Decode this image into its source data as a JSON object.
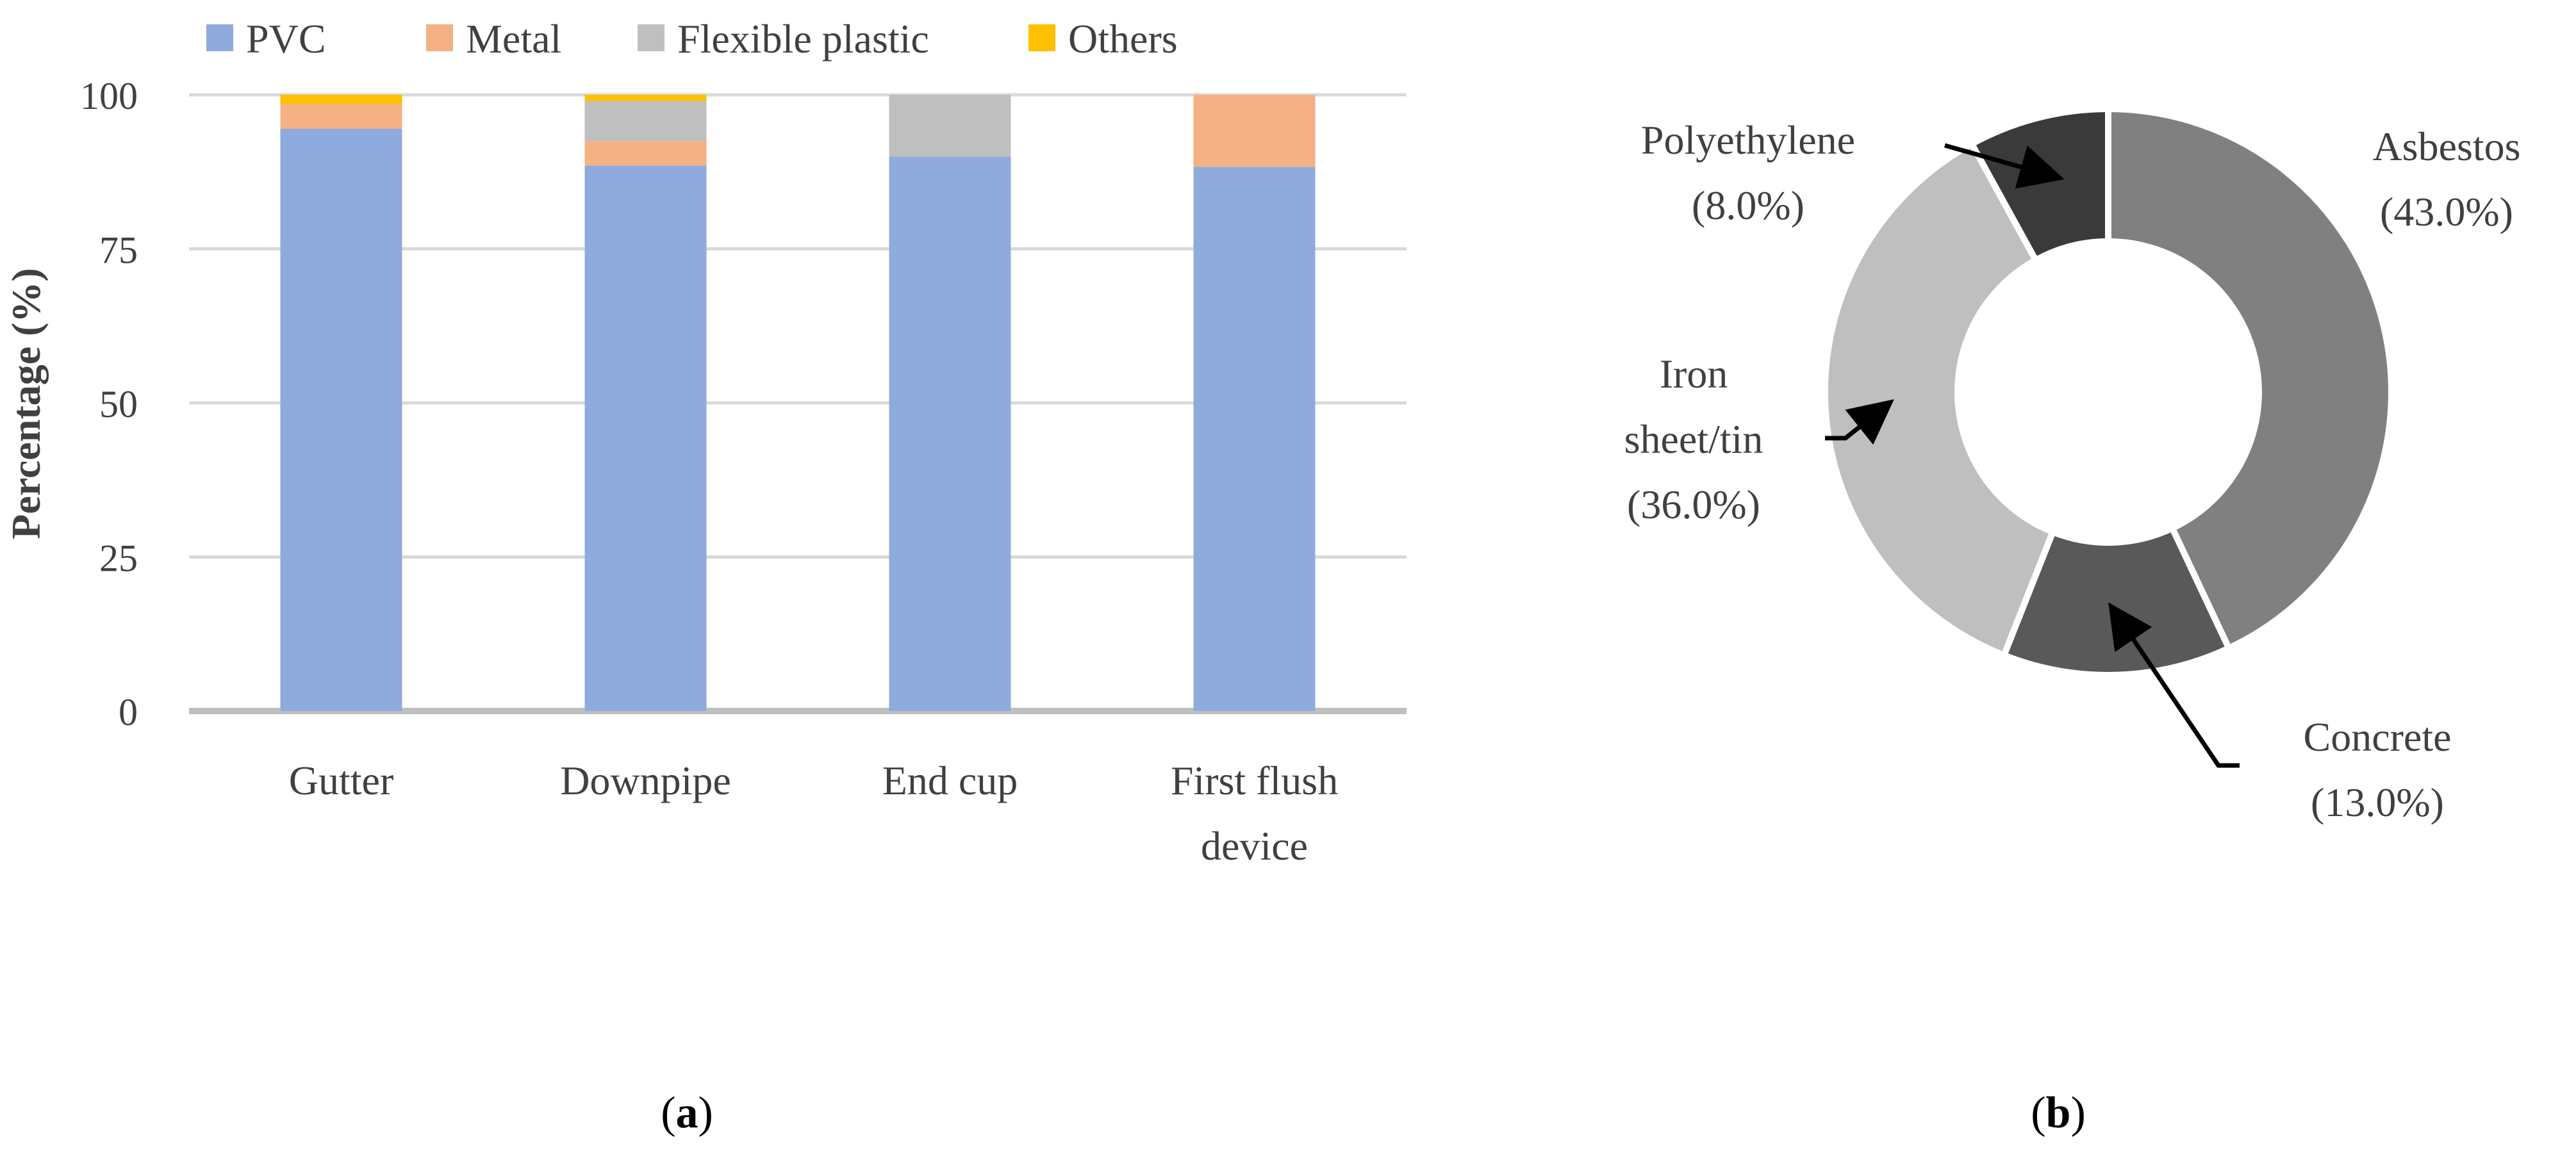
{
  "colors": {
    "PVC": "#8faadc",
    "Metal": "#f4b183",
    "Flexible plastic": "#bfbfbf",
    "Others": "#ffc000",
    "gridline": "#d9d9d9",
    "axis": "#bfbfbf",
    "text": "#404040"
  },
  "chart_data": [
    {
      "type": "bar",
      "stacked": true,
      "panel": "a",
      "panel_label": "a",
      "ylabel": "Percentage (%)",
      "xlabel": "",
      "ylim": [
        0,
        100
      ],
      "yticks": [
        0,
        25,
        50,
        75,
        100
      ],
      "grid": true,
      "legend_position": "top",
      "categories": [
        "Gutter",
        "Downpipe",
        "End cup",
        "First flush device"
      ],
      "series": [
        {
          "name": "PVC",
          "values": [
            94.5,
            88.5,
            90.0,
            88.3
          ]
        },
        {
          "name": "Metal",
          "values": [
            4.0,
            4.0,
            0.0,
            11.7
          ]
        },
        {
          "name": "Flexible plastic",
          "values": [
            0.0,
            6.5,
            10.0,
            0.0
          ]
        },
        {
          "name": "Others",
          "values": [
            1.5,
            1.0,
            0.0,
            0.0
          ]
        }
      ]
    },
    {
      "type": "pie",
      "donut": true,
      "panel": "b",
      "panel_label": "b",
      "slices": [
        {
          "name": "Asbestos",
          "value": 43.0,
          "label": "(43.0%)",
          "color": "#808080"
        },
        {
          "name": "Concrete",
          "value": 13.0,
          "label": "(13.0%)",
          "color": "#595959"
        },
        {
          "name": "Iron sheet/tin",
          "value": 36.0,
          "label": "(36.0%)",
          "color": "#bfbfbf"
        },
        {
          "name": "Polyethylene",
          "value": 8.0,
          "label": "(8.0%)",
          "color": "#3a3a3a"
        }
      ],
      "annotation_lines": {
        "Iron sheet/tin": [
          "Iron",
          "sheet/tin",
          "(36.0%)"
        ],
        "Concrete": [
          "Concrete",
          "(13.0%)"
        ],
        "Asbestos": [
          "Asbestos",
          "(43.0%)"
        ],
        "Polyethylene": [
          "Polyethylene",
          "(8.0%)"
        ]
      }
    }
  ]
}
